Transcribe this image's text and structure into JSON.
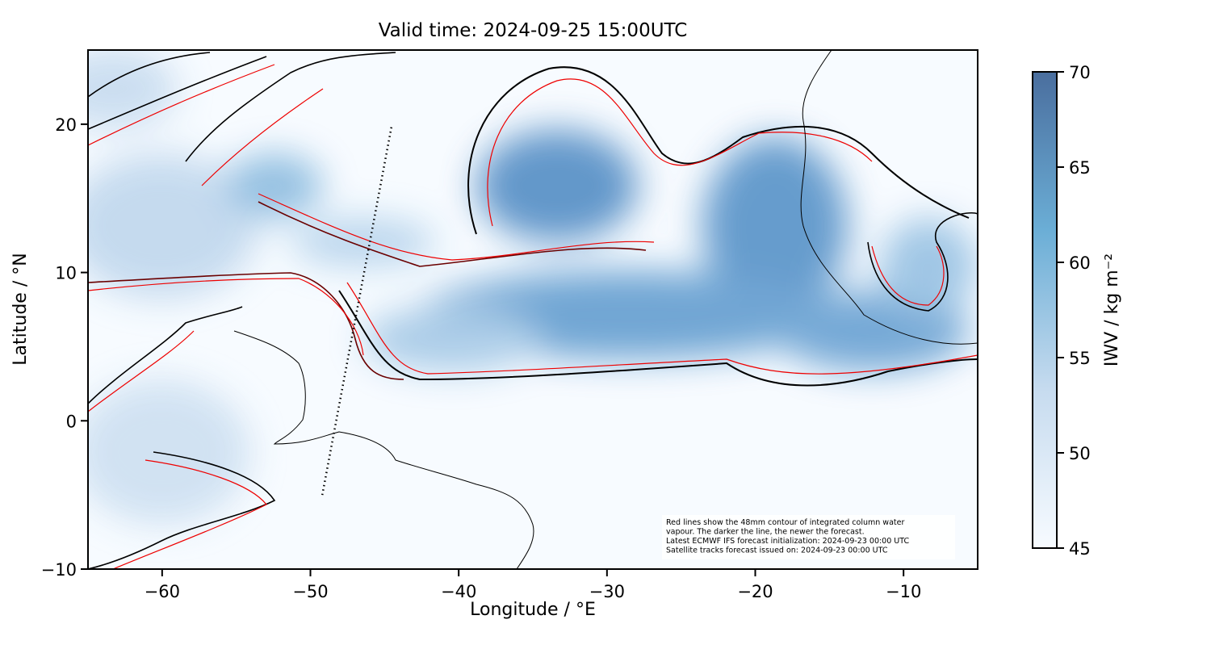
{
  "chart_data": {
    "type": "map",
    "title": "Valid time: 2024-09-25 15:00UTC",
    "xlabel": "Longitude / °E",
    "ylabel": "Latitude / °N",
    "xlim": [
      -65,
      -5
    ],
    "ylim": [
      -10,
      25
    ],
    "xticks": [
      {
        "value": -60,
        "label": "−60"
      },
      {
        "value": -50,
        "label": "−50"
      },
      {
        "value": -40,
        "label": "−40"
      },
      {
        "value": -30,
        "label": "−30"
      },
      {
        "value": -20,
        "label": "−20"
      },
      {
        "value": -10,
        "label": "−10"
      }
    ],
    "yticks": [
      {
        "value": -10,
        "label": "−10"
      },
      0,
      10,
      20
    ],
    "colorbar": {
      "label": "IWV / kg m⁻²",
      "clim": [
        45,
        70
      ],
      "ticks": [
        45,
        50,
        55,
        60,
        65,
        70
      ],
      "colors": [
        "#f7fbff",
        "#c6dbef",
        "#6baed6",
        "#4a6e9e"
      ]
    },
    "satellite_track": {
      "lon": [
        -49.2,
        -44.5
      ],
      "lat": [
        -5,
        20
      ]
    },
    "annotation": [
      "Red lines show the 48mm contour of integrated column water",
      "vapour. The darker the line, the newer the forecast.",
      "Latest ECMWF IFS forecast initialization: 2024-09-23 00:00 UTC",
      "Satellite tracks forecast issued on: 2024-09-23 00:00 UTC"
    ]
  }
}
